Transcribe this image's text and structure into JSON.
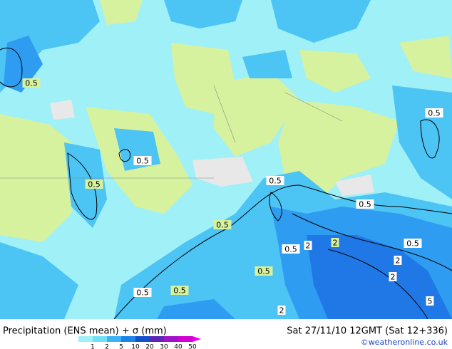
{
  "map": {
    "contour_labels": [
      "0.5",
      "0.5",
      "0.5",
      "0.5",
      "0.5",
      "0.5",
      "0.5",
      "0.5",
      "2",
      "2",
      "0.5",
      "2",
      "0.5",
      "2",
      "0.5",
      "0.5",
      "5",
      "2"
    ]
  },
  "footer": {
    "title": "Precipitation (ENS mean) + σ (mm)",
    "legend_ticks": [
      "1",
      "2",
      "5",
      "10",
      "20",
      "30",
      "40",
      "50"
    ],
    "valid_time": "Sat 27/11/10 12GMT (Sat 12+336)",
    "credit": "©weatheronline.co.uk"
  }
}
